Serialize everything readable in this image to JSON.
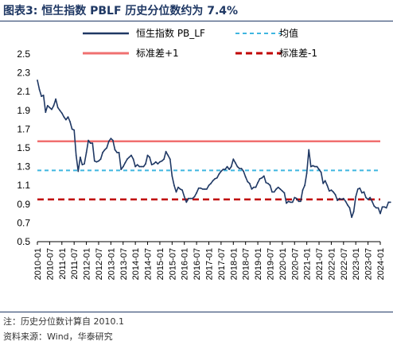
{
  "title": "图表3:  恒生指数 PBLF 历史分位数约为 7.4%",
  "notes": {
    "note": "注：历史分位数计算自 2010.1",
    "source": "资料来源：Wind，华泰研究"
  },
  "colors": {
    "series": "#1f3864",
    "mean": "#3fb6e0",
    "plus1": "#f07070",
    "minus1": "#c00000",
    "title": "#1f3864"
  },
  "chart_data": {
    "type": "line",
    "title": "",
    "xlabel": "",
    "ylabel": "",
    "ylim": [
      0.5,
      2.5
    ],
    "yticks": [
      "2.5",
      "2.3",
      "2.1",
      "1.9",
      "1.7",
      "1.5",
      "1.3",
      "1.1",
      "0.9",
      "0.7",
      "0.5"
    ],
    "xticks": [
      "2010-01",
      "2010-07",
      "2011-01",
      "2011-07",
      "2012-01",
      "2012-07",
      "2013-01",
      "2013-07",
      "2014-01",
      "2014-07",
      "2015-01",
      "2015-07",
      "2016-01",
      "2016-07",
      "2017-01",
      "2017-07",
      "2018-01",
      "2018-07",
      "2019-01",
      "2019-07",
      "2020-01",
      "2020-07",
      "2021-01",
      "2021-07",
      "2022-01",
      "2022-07",
      "2023-01",
      "2023-07",
      "2024-01"
    ],
    "legend": {
      "placement": "top",
      "series": "恒生指数 PB_LF",
      "mean": "均值",
      "plus1": "标准差+1",
      "minus1": "标准差-1"
    },
    "reference_lines": {
      "mean": 1.26,
      "plus1": 1.57,
      "minus1": 0.95
    },
    "series": [
      {
        "name": "恒生指数 PB_LF",
        "x": [
          "2010-01",
          "2010-02",
          "2010-03",
          "2010-04",
          "2010-05",
          "2010-06",
          "2010-07",
          "2010-08",
          "2010-09",
          "2010-10",
          "2010-11",
          "2010-12",
          "2011-01",
          "2011-02",
          "2011-03",
          "2011-04",
          "2011-05",
          "2011-06",
          "2011-07",
          "2011-08",
          "2011-09",
          "2011-10",
          "2011-11",
          "2011-12",
          "2012-01",
          "2012-02",
          "2012-03",
          "2012-04",
          "2012-05",
          "2012-06",
          "2012-07",
          "2012-08",
          "2012-09",
          "2012-10",
          "2012-11",
          "2012-12",
          "2013-01",
          "2013-02",
          "2013-03",
          "2013-04",
          "2013-05",
          "2013-06",
          "2013-07",
          "2013-08",
          "2013-09",
          "2013-10",
          "2013-11",
          "2013-12",
          "2014-01",
          "2014-02",
          "2014-03",
          "2014-04",
          "2014-05",
          "2014-06",
          "2014-07",
          "2014-08",
          "2014-09",
          "2014-10",
          "2014-11",
          "2014-12",
          "2015-01",
          "2015-02",
          "2015-03",
          "2015-04",
          "2015-05",
          "2015-06",
          "2015-07",
          "2015-08",
          "2015-09",
          "2015-10",
          "2015-11",
          "2015-12",
          "2016-01",
          "2016-02",
          "2016-03",
          "2016-04",
          "2016-05",
          "2016-06",
          "2016-07",
          "2016-08",
          "2016-09",
          "2016-10",
          "2016-11",
          "2016-12",
          "2017-01",
          "2017-02",
          "2017-03",
          "2017-04",
          "2017-05",
          "2017-06",
          "2017-07",
          "2017-08",
          "2017-09",
          "2017-10",
          "2017-11",
          "2017-12",
          "2018-01",
          "2018-02",
          "2018-03",
          "2018-04",
          "2018-05",
          "2018-06",
          "2018-07",
          "2018-08",
          "2018-09",
          "2018-10",
          "2018-11",
          "2018-12",
          "2019-01",
          "2019-02",
          "2019-03",
          "2019-04",
          "2019-05",
          "2019-06",
          "2019-07",
          "2019-08",
          "2019-09",
          "2019-10",
          "2019-11",
          "2019-12",
          "2020-01",
          "2020-02",
          "2020-03",
          "2020-04",
          "2020-05",
          "2020-06",
          "2020-07",
          "2020-08",
          "2020-09",
          "2020-10",
          "2020-11",
          "2020-12",
          "2021-01",
          "2021-02",
          "2021-03",
          "2021-04",
          "2021-05",
          "2021-06",
          "2021-07",
          "2021-08",
          "2021-09",
          "2021-10",
          "2021-11",
          "2021-12",
          "2022-01",
          "2022-02",
          "2022-03",
          "2022-04",
          "2022-05",
          "2022-06",
          "2022-07",
          "2022-08",
          "2022-09",
          "2022-10",
          "2022-11",
          "2022-12",
          "2023-01",
          "2023-02",
          "2023-03",
          "2023-04",
          "2023-05",
          "2023-06",
          "2023-07",
          "2023-08",
          "2023-09",
          "2023-10",
          "2023-11",
          "2023-12",
          "2024-01",
          "2024-02",
          "2024-03",
          "2024-04",
          "2024-05",
          "2024-06"
        ],
        "values": [
          2.22,
          2.12,
          2.05,
          2.06,
          1.88,
          1.95,
          1.93,
          1.91,
          1.95,
          2.02,
          1.93,
          1.9,
          1.87,
          1.83,
          1.8,
          1.83,
          1.78,
          1.7,
          1.69,
          1.42,
          1.25,
          1.4,
          1.32,
          1.33,
          1.45,
          1.58,
          1.55,
          1.55,
          1.36,
          1.35,
          1.36,
          1.38,
          1.45,
          1.48,
          1.5,
          1.57,
          1.6,
          1.58,
          1.48,
          1.45,
          1.45,
          1.27,
          1.3,
          1.34,
          1.38,
          1.4,
          1.42,
          1.38,
          1.3,
          1.32,
          1.3,
          1.3,
          1.3,
          1.33,
          1.42,
          1.4,
          1.32,
          1.33,
          1.35,
          1.33,
          1.35,
          1.36,
          1.38,
          1.46,
          1.42,
          1.38,
          1.2,
          1.1,
          1.03,
          1.08,
          1.06,
          1.05,
          0.98,
          0.92,
          0.96,
          0.96,
          0.96,
          0.98,
          1.02,
          1.07,
          1.07,
          1.06,
          1.06,
          1.06,
          1.1,
          1.12,
          1.15,
          1.17,
          1.18,
          1.22,
          1.25,
          1.27,
          1.27,
          1.3,
          1.27,
          1.3,
          1.38,
          1.34,
          1.3,
          1.28,
          1.28,
          1.25,
          1.19,
          1.14,
          1.12,
          1.06,
          1.08,
          1.08,
          1.13,
          1.17,
          1.18,
          1.2,
          1.13,
          1.12,
          1.1,
          1.03,
          1.03,
          1.06,
          1.08,
          1.06,
          1.04,
          1.02,
          0.91,
          0.93,
          0.92,
          0.92,
          0.97,
          0.96,
          0.93,
          0.93,
          1.05,
          1.1,
          1.23,
          1.48,
          1.3,
          1.31,
          1.3,
          1.3,
          1.27,
          1.24,
          1.12,
          1.15,
          1.1,
          1.04,
          1.05,
          1.03,
          1.0,
          0.94,
          0.96,
          0.95,
          0.96,
          0.93,
          0.89,
          0.86,
          0.76,
          0.82,
          0.98,
          1.06,
          1.07,
          1.02,
          1.03,
          0.97,
          0.95,
          0.97,
          0.93,
          0.88,
          0.86,
          0.86,
          0.8,
          0.87,
          0.87,
          0.86,
          0.92,
          0.92
        ]
      }
    ]
  }
}
